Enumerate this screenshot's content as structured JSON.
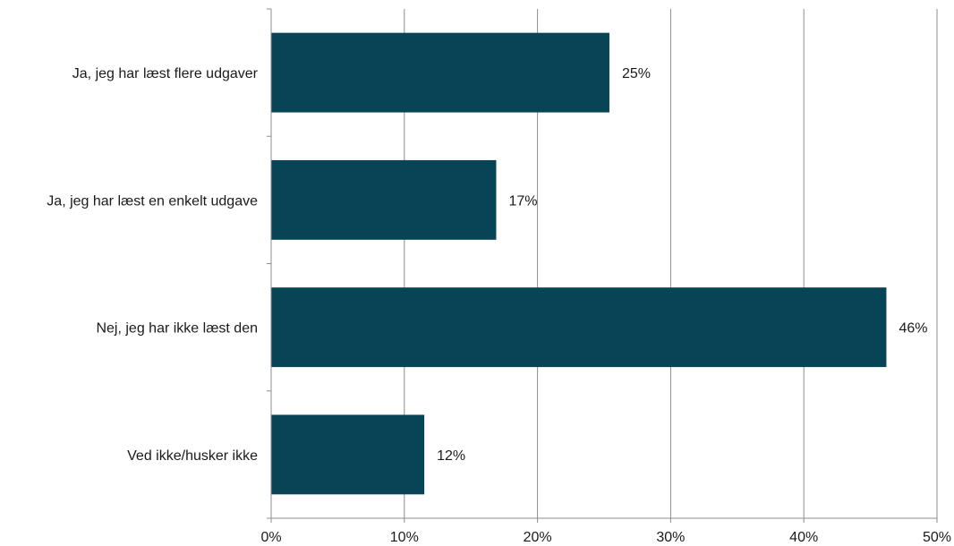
{
  "chart_data": {
    "type": "bar",
    "orientation": "horizontal",
    "categories": [
      "Ja, jeg har læst flere udgaver",
      "Ja, jeg har læst en enkelt udgave",
      "Nej, jeg har ikke læst den",
      "Ved ikke/husker ikke"
    ],
    "values": [
      25.4,
      16.9,
      46.2,
      11.5
    ],
    "value_labels": [
      "25%",
      "17%",
      "46%",
      "12%"
    ],
    "xlim": [
      0,
      50
    ],
    "xticks": [
      0,
      10,
      20,
      30,
      40,
      50
    ],
    "xtick_labels": [
      "0%",
      "10%",
      "20%",
      "30%",
      "40%",
      "50%"
    ],
    "title": "",
    "xlabel": "",
    "ylabel": "",
    "grid": "vertical",
    "legend": "none",
    "bar_color": "#074456",
    "grid_color": "#8c8c8c"
  }
}
